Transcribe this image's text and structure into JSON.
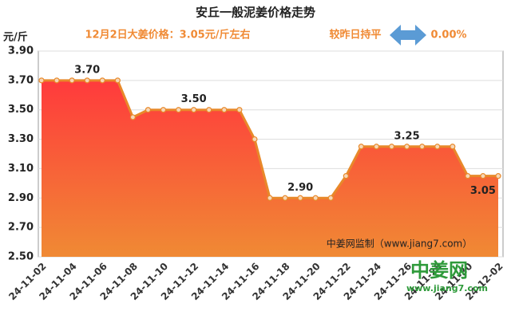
{
  "chart_data": {
    "type": "area",
    "title": "安丘一般泥姜价格走势",
    "headline": "12月2日大姜价格：3.05元/斤左右",
    "change_text": "较昨日持平",
    "change_value": "0.00%",
    "y_label": "元/斤",
    "watermark": "中姜网监制（www.jiang7.com）",
    "logo": "中姜网",
    "logo_url": "www.jiang7.com",
    "categories": [
      "24-11-02",
      null,
      "24-11-04",
      null,
      "24-11-06",
      null,
      "24-11-08",
      null,
      "24-11-10",
      null,
      "24-11-12",
      null,
      "24-11-14",
      null,
      "24-11-16",
      null,
      "24-11-18",
      null,
      "24-11-20",
      null,
      "24-11-22",
      null,
      "24-11-24",
      null,
      "24-11-26",
      null,
      "24-11-28",
      null,
      "24-11-30",
      null,
      "24-12-02"
    ],
    "values": [
      3.7,
      3.7,
      3.7,
      3.7,
      3.7,
      3.7,
      3.45,
      3.5,
      3.5,
      3.5,
      3.5,
      3.5,
      3.5,
      3.5,
      3.3,
      2.9,
      2.9,
      2.9,
      2.9,
      2.9,
      3.05,
      3.25,
      3.25,
      3.25,
      3.25,
      3.25,
      3.25,
      3.25,
      3.05,
      3.05,
      3.05
    ],
    "value_labels": [
      null,
      null,
      null,
      "3.70",
      null,
      null,
      null,
      null,
      null,
      null,
      "3.50",
      null,
      null,
      null,
      null,
      null,
      null,
      "2.90",
      null,
      null,
      null,
      null,
      null,
      null,
      "3.25",
      null,
      null,
      null,
      null,
      "3.05",
      null
    ],
    "color": "#e8892a",
    "ylim": [
      2.5,
      3.9
    ],
    "yticks": [
      {
        "value": 2.5,
        "label": "2.50"
      },
      {
        "value": 2.7,
        "label": "2.70"
      },
      {
        "value": 2.9,
        "label": "2.90"
      },
      {
        "value": 3.1,
        "label": "3.10"
      },
      {
        "value": 3.3,
        "label": "3.30"
      },
      {
        "value": 3.5,
        "label": "3.50"
      },
      {
        "value": 3.7,
        "label": "3.70"
      },
      {
        "value": 3.9,
        "label": "3.90"
      }
    ],
    "grid": true
  }
}
